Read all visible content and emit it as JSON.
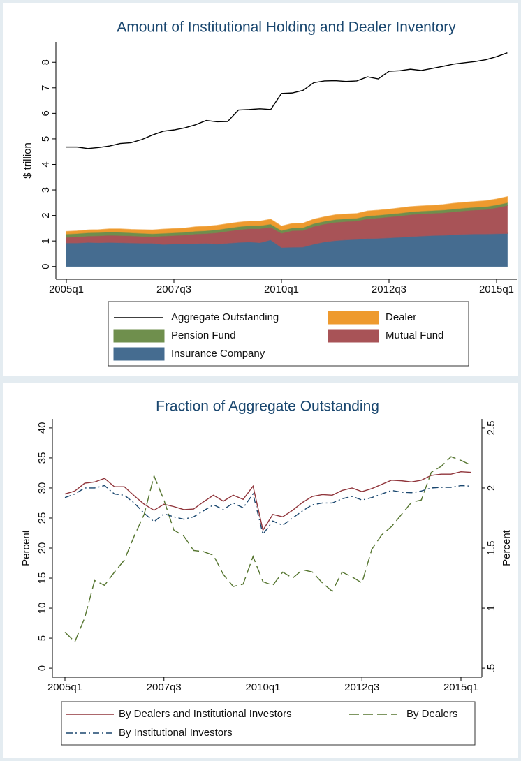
{
  "chart_data": [
    {
      "type": "area",
      "stacked": true,
      "title": "Amount of Institutional Holding and Dealer Inventory",
      "ylabel": "$ trillion",
      "x": [
        "2005q1",
        "2005q2",
        "2005q3",
        "2005q4",
        "2006q1",
        "2006q2",
        "2006q3",
        "2006q4",
        "2007q1",
        "2007q2",
        "2007q3",
        "2007q4",
        "2008q1",
        "2008q2",
        "2008q3",
        "2008q4",
        "2009q1",
        "2009q2",
        "2009q3",
        "2009q4",
        "2010q1",
        "2010q2",
        "2010q3",
        "2010q4",
        "2011q1",
        "2011q2",
        "2011q3",
        "2011q4",
        "2012q1",
        "2012q2",
        "2012q3",
        "2012q4",
        "2013q1",
        "2013q2",
        "2013q3",
        "2013q4",
        "2014q1",
        "2014q2",
        "2014q3",
        "2014q4",
        "2015q1",
        "2015q2"
      ],
      "ylim": [
        -0.5,
        8.8
      ],
      "yticks": [
        0,
        1,
        2,
        3,
        4,
        5,
        6,
        7,
        8
      ],
      "series": [
        {
          "name": "Aggregate Outstanding",
          "type": "line",
          "color": "#000000",
          "values": [
            4.68,
            4.68,
            4.62,
            4.66,
            4.72,
            4.82,
            4.85,
            4.97,
            5.15,
            5.3,
            5.35,
            5.43,
            5.55,
            5.72,
            5.67,
            5.68,
            6.13,
            6.15,
            6.18,
            6.15,
            6.78,
            6.8,
            6.9,
            7.2,
            7.27,
            7.28,
            7.25,
            7.27,
            7.43,
            7.35,
            7.65,
            7.67,
            7.73,
            7.68,
            7.76,
            7.84,
            7.93,
            7.98,
            8.03,
            8.1,
            8.22,
            8.37
          ]
        },
        {
          "name": "Dealer",
          "type": "area",
          "color": "#ee9a2e",
          "values": [
            0.09,
            0.09,
            0.1,
            0.1,
            0.11,
            0.12,
            0.12,
            0.13,
            0.14,
            0.15,
            0.15,
            0.15,
            0.16,
            0.16,
            0.16,
            0.16,
            0.16,
            0.16,
            0.16,
            0.18,
            0.16,
            0.16,
            0.16,
            0.16,
            0.16,
            0.17,
            0.17,
            0.17,
            0.18,
            0.18,
            0.18,
            0.19,
            0.19,
            0.19,
            0.19,
            0.2,
            0.21,
            0.21,
            0.21,
            0.22,
            0.22,
            0.22
          ]
        },
        {
          "name": "Pension Fund",
          "type": "area",
          "color": "#6f8f4d",
          "values": [
            0.13,
            0.13,
            0.13,
            0.13,
            0.13,
            0.13,
            0.12,
            0.12,
            0.11,
            0.11,
            0.11,
            0.11,
            0.11,
            0.11,
            0.12,
            0.12,
            0.12,
            0.12,
            0.12,
            0.12,
            0.11,
            0.11,
            0.11,
            0.11,
            0.11,
            0.11,
            0.11,
            0.11,
            0.11,
            0.11,
            0.11,
            0.11,
            0.11,
            0.11,
            0.11,
            0.11,
            0.11,
            0.11,
            0.11,
            0.11,
            0.11,
            0.11
          ]
        },
        {
          "name": "Mutual Fund",
          "type": "area",
          "color": "#a85357",
          "values": [
            0.22,
            0.24,
            0.25,
            0.27,
            0.28,
            0.28,
            0.28,
            0.27,
            0.26,
            0.33,
            0.33,
            0.35,
            0.38,
            0.38,
            0.45,
            0.47,
            0.5,
            0.52,
            0.55,
            0.5,
            0.56,
            0.65,
            0.65,
            0.7,
            0.7,
            0.72,
            0.72,
            0.72,
            0.78,
            0.8,
            0.82,
            0.84,
            0.86,
            0.87,
            0.87,
            0.88,
            0.9,
            0.92,
            0.94,
            0.96,
            1.02,
            1.1
          ]
        },
        {
          "name": "Insurance Company",
          "type": "area",
          "color": "#456c90",
          "values": [
            0.93,
            0.93,
            0.95,
            0.94,
            0.95,
            0.94,
            0.93,
            0.92,
            0.92,
            0.87,
            0.89,
            0.89,
            0.9,
            0.92,
            0.88,
            0.92,
            0.95,
            0.97,
            0.94,
            1.05,
            0.75,
            0.76,
            0.77,
            0.88,
            0.97,
            1.02,
            1.05,
            1.07,
            1.1,
            1.11,
            1.13,
            1.15,
            1.18,
            1.2,
            1.22,
            1.23,
            1.25,
            1.27,
            1.28,
            1.28,
            1.29,
            1.3
          ]
        }
      ]
    },
    {
      "type": "line",
      "title": "Fraction of Aggregate Outstanding",
      "ylabel": "Percent",
      "y2label": "Percent",
      "x": [
        "2005q1",
        "2005q2",
        "2005q3",
        "2005q4",
        "2006q1",
        "2006q2",
        "2006q3",
        "2006q4",
        "2007q1",
        "2007q2",
        "2007q3",
        "2007q4",
        "2008q1",
        "2008q2",
        "2008q3",
        "2008q4",
        "2009q1",
        "2009q2",
        "2009q3",
        "2009q4",
        "2010q1",
        "2010q2",
        "2010q3",
        "2010q4",
        "2011q1",
        "2011q2",
        "2011q3",
        "2011q4",
        "2012q1",
        "2012q2",
        "2012q3",
        "2012q4",
        "2013q1",
        "2013q2",
        "2013q3",
        "2013q4",
        "2014q1",
        "2014q2",
        "2014q3",
        "2014q4",
        "2015q1",
        "2015q2"
      ],
      "ylim": [
        -1.5,
        41.5
      ],
      "yticks": [
        0,
        5,
        10,
        15,
        20,
        25,
        30,
        35,
        40
      ],
      "y2lim": [
        0.425,
        2.575
      ],
      "y2ticks": [
        {
          "value": 0.5,
          "label": ".5"
        },
        1,
        1.5,
        2,
        2.5
      ],
      "series": [
        {
          "name": "By Dealers and Institutional Investors",
          "color": "#90353b",
          "line_style": "solid",
          "values": [
            29.0,
            29.5,
            30.8,
            31.0,
            31.6,
            30.2,
            30.2,
            28.7,
            27.3,
            26.3,
            27.3,
            26.9,
            26.4,
            26.5,
            27.7,
            28.8,
            27.8,
            28.8,
            28.1,
            30.3,
            23.0,
            25.6,
            25.2,
            26.3,
            27.6,
            28.6,
            28.9,
            28.8,
            29.6,
            30.0,
            29.4,
            29.9,
            30.6,
            31.3,
            31.2,
            31.0,
            31.3,
            32.1,
            32.3,
            32.3,
            32.7,
            32.6
          ]
        },
        {
          "name": "By Dealers",
          "color": "#55752f",
          "line_style": "long-dash",
          "axis": "y2",
          "values": [
            0.8,
            0.72,
            0.92,
            1.23,
            1.19,
            1.3,
            1.4,
            1.6,
            1.78,
            2.1,
            1.9,
            1.65,
            1.6,
            1.48,
            1.47,
            1.44,
            1.28,
            1.18,
            1.2,
            1.43,
            1.22,
            1.19,
            1.3,
            1.25,
            1.32,
            1.3,
            1.21,
            1.14,
            1.3,
            1.26,
            1.21,
            1.49,
            1.61,
            1.68,
            1.78,
            1.88,
            1.9,
            2.13,
            2.18,
            2.26,
            2.23,
            2.19
          ]
        },
        {
          "name": "By Institutional Investors",
          "color": "#1a476f",
          "line_style": "dash-dot",
          "values": [
            28.4,
            29.0,
            30.0,
            30.0,
            30.4,
            29.0,
            28.8,
            27.5,
            25.8,
            24.4,
            25.7,
            25.2,
            24.8,
            25.2,
            26.2,
            27.2,
            26.4,
            27.5,
            26.7,
            29.0,
            22.3,
            24.5,
            23.8,
            25.0,
            26.2,
            27.2,
            27.5,
            27.5,
            28.2,
            28.6,
            28.0,
            28.4,
            29.0,
            29.6,
            29.3,
            29.2,
            29.5,
            30.0,
            30.1,
            30.1,
            30.4,
            30.3
          ]
        }
      ]
    }
  ]
}
